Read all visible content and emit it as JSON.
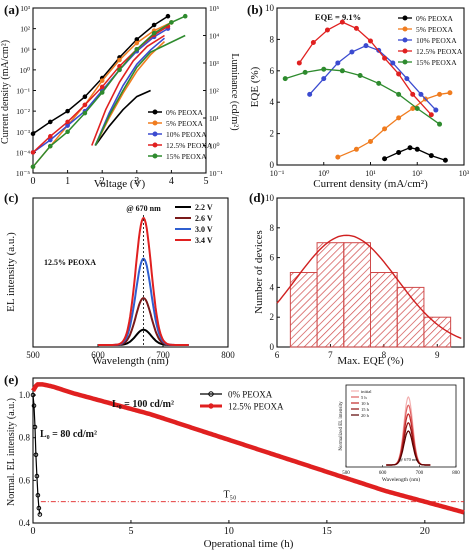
{
  "colors": {
    "p0": "#000000",
    "p5": "#f07c1f",
    "p10": "#3b4bd0",
    "p12": "#e02020",
    "p15": "#2e8b2e",
    "c22": "#000000",
    "c26": "#7a1a1a",
    "c30": "#2f5fd0",
    "c34": "#e02020",
    "histBar": "#d04a4a",
    "fitLine": "#d02020"
  },
  "chart_data": [
    {
      "id": "a",
      "type": "line",
      "panel_label": "(a)",
      "xlabel": "Voltage (V)",
      "ylabel": "Current density (mA/cm²)",
      "ylabel2": "Luminance (cd/m²)",
      "xlim": [
        0,
        5
      ],
      "ylim": [
        1e-05,
        1000.0
      ],
      "ylim2": [
        0.1,
        100000.0
      ],
      "yscale": "log",
      "x_ticks": [
        "0",
        "1",
        "2",
        "3",
        "4",
        "5"
      ],
      "y_ticks": [
        "10⁻⁵",
        "10⁻⁴",
        "10⁻³",
        "10⁻²",
        "10⁻¹",
        "10⁰",
        "10¹",
        "10²",
        "10³"
      ],
      "y2_ticks": [
        "10⁻¹",
        "10⁰",
        "10¹",
        "10²",
        "10³",
        "10⁴",
        "10⁵"
      ],
      "legend": [
        "0%  PEOXA",
        "5%  PEOXA",
        "10% PEOXA",
        "12.5% PEOXA",
        "15% PEOXA"
      ],
      "legend_position": "bottom-right",
      "current_density": [
        {
          "name": "0%  PEOXA",
          "x": [
            0,
            0.5,
            1,
            1.5,
            2,
            2.5,
            3,
            3.5,
            3.9
          ],
          "y": [
            0.0008,
            0.003,
            0.01,
            0.05,
            0.4,
            4,
            30,
            150,
            400
          ]
        },
        {
          "name": "5%  PEOXA",
          "x": [
            0,
            0.5,
            1,
            1.5,
            2,
            2.5,
            3,
            3.5,
            4
          ],
          "y": [
            2e-05,
            0.0002,
            0.002,
            0.02,
            0.3,
            3,
            20,
            80,
            200
          ]
        },
        {
          "name": "10% PEOXA",
          "x": [
            0,
            0.5,
            1,
            1.5,
            2,
            2.5,
            3,
            3.5,
            3.9
          ],
          "y": [
            0.0001,
            0.0004,
            0.002,
            0.01,
            0.1,
            1,
            8,
            40,
            100
          ]
        },
        {
          "name": "12.5% PEOXA",
          "x": [
            0,
            0.5,
            1,
            1.5,
            2,
            2.5,
            3,
            3.5,
            3.9
          ],
          "y": [
            0.0001,
            0.0006,
            0.003,
            0.02,
            0.15,
            1.5,
            10,
            50,
            130
          ]
        },
        {
          "name": "15% PEOXA",
          "x": [
            0,
            0.5,
            1,
            1.5,
            2,
            2.5,
            3,
            3.5,
            4,
            4.4
          ],
          "y": [
            2e-05,
            0.0002,
            0.001,
            0.008,
            0.08,
            1,
            10,
            60,
            200,
            400
          ]
        }
      ],
      "luminance": [
        {
          "name": "0%  PEOXA",
          "x": [
            1.8,
            2.2,
            2.6,
            3.0,
            3.4
          ],
          "y": [
            1,
            5,
            20,
            60,
            100
          ]
        },
        {
          "name": "5%  PEOXA",
          "x": [
            1.8,
            2.2,
            2.6,
            3.0,
            3.4,
            3.8
          ],
          "y": [
            1,
            10,
            80,
            500,
            2000,
            6000
          ]
        },
        {
          "name": "10% PEOXA",
          "x": [
            1.8,
            2.2,
            2.6,
            3.0,
            3.4,
            3.8
          ],
          "y": [
            1,
            15,
            150,
            900,
            3000,
            8000
          ]
        },
        {
          "name": "12.5% PEOXA",
          "x": [
            1.7,
            2.1,
            2.5,
            2.9,
            3.3,
            3.8
          ],
          "y": [
            1,
            20,
            200,
            1200,
            4000,
            10000
          ]
        },
        {
          "name": "15% PEOXA",
          "x": [
            1.8,
            2.2,
            2.6,
            3.0,
            3.4,
            4.4
          ],
          "y": [
            1,
            12,
            100,
            700,
            2500,
            10000
          ]
        }
      ]
    },
    {
      "id": "b",
      "type": "line",
      "panel_label": "(b)",
      "xlabel": "Current density (mA/cm²)",
      "ylabel": "EQE (%)",
      "xscale": "log",
      "xlim": [
        0.1,
        1000
      ],
      "ylim": [
        0,
        10
      ],
      "x_ticks": [
        "10⁻¹",
        "10⁰",
        "10¹",
        "10²",
        "10³"
      ],
      "y_ticks": [
        "0",
        "2",
        "4",
        "6",
        "8",
        "10"
      ],
      "annotation": "EQE = 9.1%",
      "legend": [
        "0%  PEOXA",
        "5%  PEOXA",
        "10% PEOXA",
        "12.5% PEOXA",
        "15% PEOXA"
      ],
      "legend_position": "top-right",
      "series": [
        {
          "name": "0%  PEOXA",
          "x": [
            20,
            40,
            70,
            100,
            200,
            400
          ],
          "y": [
            0.4,
            0.8,
            1.1,
            1.0,
            0.6,
            0.3
          ]
        },
        {
          "name": "5%  PEOXA",
          "x": [
            2,
            5,
            10,
            20,
            40,
            80,
            150,
            300,
            500
          ],
          "y": [
            0.5,
            1.0,
            1.5,
            2.3,
            3.0,
            3.6,
            4.2,
            4.5,
            4.6
          ]
        },
        {
          "name": "10% PEOXA",
          "x": [
            0.5,
            1,
            2,
            4,
            8,
            15,
            30,
            60,
            120,
            250
          ],
          "y": [
            4.5,
            5.5,
            6.5,
            7.2,
            7.6,
            7.3,
            6.5,
            5.5,
            4.5,
            3.5
          ]
        },
        {
          "name": "12.5% PEOXA",
          "x": [
            0.3,
            0.6,
            1.2,
            2.5,
            5,
            10,
            20,
            40,
            80,
            200
          ],
          "y": [
            6.5,
            7.8,
            8.6,
            9.1,
            8.7,
            7.9,
            6.8,
            5.8,
            4.5,
            3.2
          ]
        },
        {
          "name": "15% PEOXA",
          "x": [
            0.15,
            0.4,
            1,
            2.5,
            6,
            15,
            40,
            100,
            300
          ],
          "y": [
            5.5,
            5.9,
            6.1,
            6.0,
            5.7,
            5.2,
            4.5,
            3.6,
            2.6
          ]
        }
      ]
    },
    {
      "id": "c",
      "type": "line",
      "panel_label": "(c)",
      "xlabel": "Wavelength (nm)",
      "ylabel": "EL intensity (a.u.)",
      "xlim": [
        500,
        800
      ],
      "x_ticks": [
        "500",
        "600",
        "700",
        "800"
      ],
      "annotation": "@ 670 nm",
      "series_label": "12.5% PEOXA",
      "peak_nm": 670,
      "fwhm_nm": 28,
      "series": [
        {
          "name": "2.2 V",
          "peak": 0.12
        },
        {
          "name": "2.6 V",
          "peak": 0.37
        },
        {
          "name": "3.0 V",
          "peak": 0.68
        },
        {
          "name": "3.4 V",
          "peak": 1.0
        }
      ],
      "legend_position": "top-right"
    },
    {
      "id": "d",
      "type": "bar",
      "panel_label": "(d)",
      "xlabel": "Max. EQE (%)",
      "ylabel": "Number of devices",
      "xlim": [
        6,
        9.5
      ],
      "ylim": [
        0,
        10
      ],
      "x_ticks": [
        "6",
        "7",
        "8",
        "9"
      ],
      "y_ticks": [
        "0",
        "2",
        "4",
        "6",
        "8",
        "10"
      ],
      "bin_edges": [
        6.25,
        6.75,
        7.25,
        7.75,
        8.25,
        8.75,
        9.25
      ],
      "values": [
        5,
        7,
        7,
        5,
        4,
        2
      ],
      "fit": {
        "type": "gaussian",
        "mean": 7.3,
        "sigma": 0.95,
        "peak": 7.5
      }
    },
    {
      "id": "e",
      "type": "line",
      "panel_label": "(e)",
      "xlabel": "Operational time (h)",
      "ylabel": "Normal. EL intensity (a.u.)",
      "xlim": [
        0,
        22
      ],
      "ylim": [
        0.4,
        1.08
      ],
      "x_ticks": [
        "0",
        "5",
        "10",
        "15",
        "20"
      ],
      "y_ticks": [
        "0.4",
        "0.6",
        "0.8",
        "1.0"
      ],
      "annotations": {
        "l0_12": "L₀ = 100 cd/m²",
        "l0_0": "L₀ = 80 cd/m²",
        "t50": "T₅₀"
      },
      "legend": [
        "0%  PEOXA",
        "12.5% PEOXA"
      ],
      "legend_position": "top-center",
      "t50_level": 0.5,
      "series": [
        {
          "name": "0%  PEOXA",
          "x": [
            0,
            0.05,
            0.1,
            0.15,
            0.2,
            0.25,
            0.3,
            0.35
          ],
          "y": [
            1.0,
            0.95,
            0.85,
            0.72,
            0.62,
            0.53,
            0.47,
            0.44
          ]
        },
        {
          "name": "12.5% PEOXA",
          "x": [
            0,
            0.2,
            0.5,
            1,
            2,
            4,
            6,
            8,
            10,
            12,
            14,
            16,
            18,
            20,
            22
          ],
          "y": [
            1.02,
            1.05,
            1.05,
            1.04,
            1.01,
            0.96,
            0.91,
            0.85,
            0.79,
            0.73,
            0.67,
            0.61,
            0.55,
            0.5,
            0.45
          ]
        }
      ],
      "inset": {
        "xlabel": "Wavelength (nm)",
        "ylabel": "Normalized EL intensity",
        "x_ticks": [
          "500",
          "600",
          "700",
          "800"
        ],
        "annotation": "@ 670 nm",
        "legend": [
          "initial",
          "5 h",
          "10 h",
          "15 h",
          "20 h"
        ],
        "peaks": [
          1.0,
          0.88,
          0.75,
          0.62,
          0.5
        ]
      }
    }
  ]
}
